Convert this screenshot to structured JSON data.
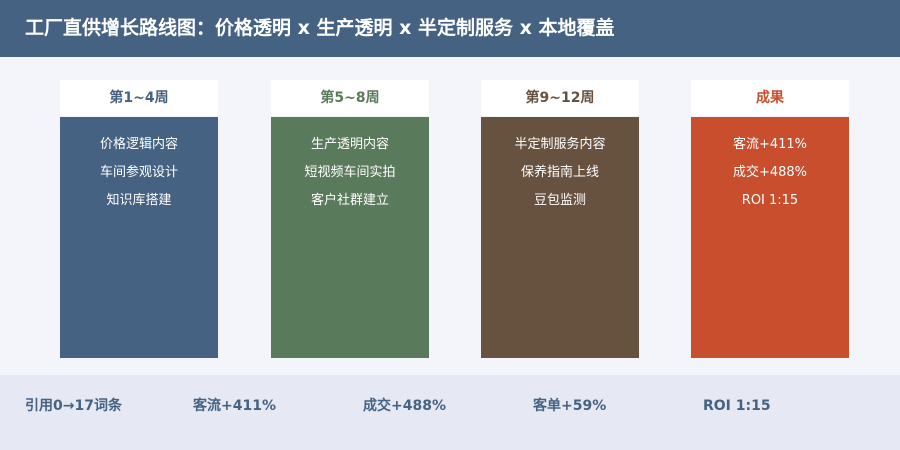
{
  "header": {
    "title": "工厂直供增长路线图：价格透明 x 生产透明 x 半定制服务 x 本地覆盖"
  },
  "columns": [
    {
      "label": "第1~4周",
      "items": [
        "价格逻辑内容",
        "车间参观设计",
        "知识库搭建"
      ]
    },
    {
      "label": "第5~8周",
      "items": [
        "生产透明内容",
        "短视频车间实拍",
        "客户社群建立"
      ]
    },
    {
      "label": "第9~12周",
      "items": [
        "半定制服务内容",
        "保养指南上线",
        "豆包监测"
      ]
    },
    {
      "label": "成果",
      "items": [
        "客流+411%",
        "成交+488%",
        "ROI 1:15"
      ]
    }
  ],
  "footer": {
    "items": [
      "引用0→17词条",
      "客流+411%",
      "成交+488%",
      "客单+59%",
      "ROI 1:15"
    ]
  }
}
